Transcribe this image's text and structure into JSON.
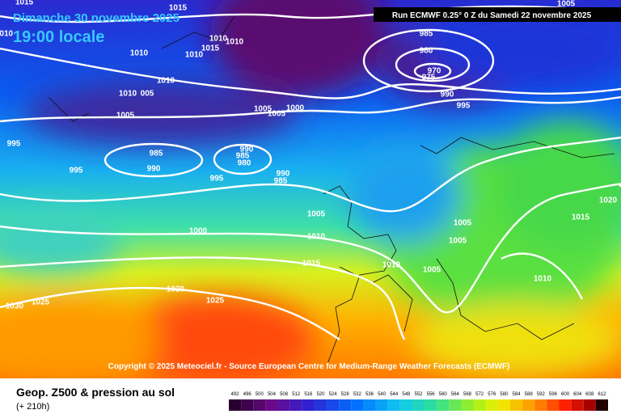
{
  "header": {
    "date": "Dimanche 30 novembre 2025",
    "time": "19:00 locale",
    "run": "Run ECMWF 0.25° 0 Z du Samedi 22 novembre 2025"
  },
  "copyright": "Copyright © 2025 Meteociel.fr - Source European Centre for Medium-Range Weather Forecasts (ECMWF)",
  "footer": {
    "title": "Geop. Z500 & pression au sol",
    "lead": "(+ 210h)"
  },
  "scale": {
    "labels": [
      492,
      496,
      500,
      504,
      508,
      512,
      516,
      520,
      524,
      528,
      532,
      536,
      540,
      544,
      548,
      552,
      556,
      560,
      564,
      568,
      572,
      576,
      580,
      584,
      588,
      592,
      596,
      600,
      604,
      608,
      612
    ]
  },
  "isobar_labels": [
    1015,
    1005,
    1015,
    1010,
    1010,
    1010,
    1015,
    1010,
    1010,
    1010,
    1010,
    "005",
    1005,
    1005,
    1000,
    1005,
    985,
    980,
    970,
    975,
    990,
    995,
    995,
    995,
    985,
    990,
    990,
    985,
    980,
    995,
    990,
    985,
    1005,
    1000,
    1010,
    1005,
    1005,
    1015,
    1020,
    1015,
    1010,
    1005,
    1010,
    1020,
    1025,
    1025,
    1030
  ]
}
